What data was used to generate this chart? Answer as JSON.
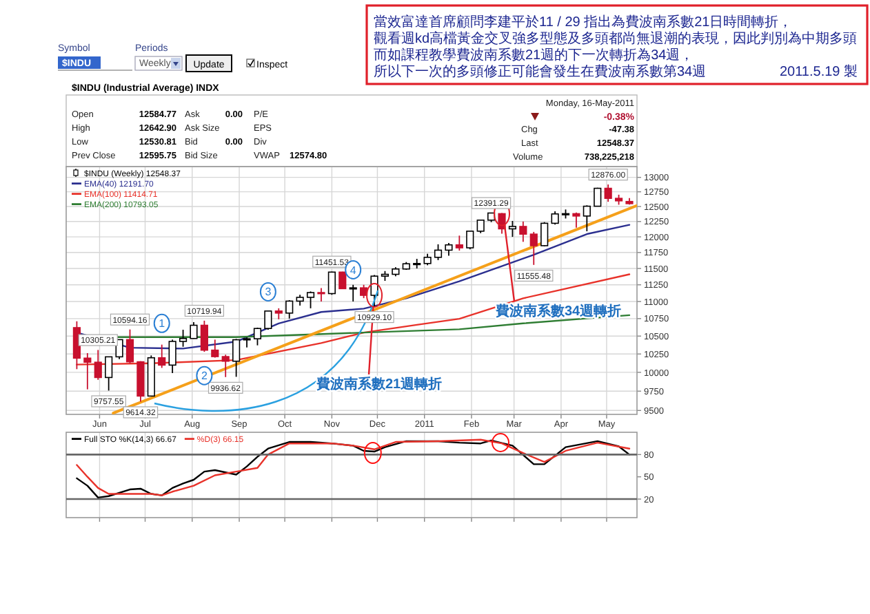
{
  "chart_data": [
    {
      "type": "other",
      "annotations": [
        "Symbol",
        "$INDU",
        "Periods",
        "Weekly",
        "Update",
        "Inspect",
        "Open",
        "12584.77",
        "High",
        "12642.90",
        "Low",
        "12530.81",
        "Prev Close",
        "12595.75",
        "Ask",
        "0.00",
        "Ask Size",
        "Bid",
        "0.00",
        "Bid Size",
        "P/E",
        "EPS",
        "Div",
        "VWAP",
        "12574.80",
        "Monday, 16-May-2011",
        "-0.38%",
        "Chg",
        "-47.38",
        "Last",
        "12548.37",
        "Volume",
        "738,225,218",
        "當效富達首席顧問李建平於11 / 29 指出為費波南系數21日時間轉折，",
        "觀看週kd高檔黃金交叉強多型態及多頭都尚無退潮的表現，因此判別為中期多頭",
        "而如課程教學費波南系數21週的下一次轉折為34週，",
        "所以下一次的多頭修正可能會發生在費波南系數第34週",
        "2011.5.19  製"
      ]
    },
    {
      "type": "candlestick",
      "title": "$INDU (Industrial Average) INDX",
      "log": "y",
      "grid": true,
      "legend": "top left",
      "xlim": [
        "2010-05-10",
        "2011-05-21"
      ],
      "ylim": [
        9450,
        13190
      ],
      "xticks": [
        {
          "value": "2010-06-01",
          "label": "Jun"
        },
        {
          "value": "2010-07-01",
          "label": "Jul"
        },
        {
          "value": "2010-08-01",
          "label": "Aug"
        },
        {
          "value": "2010-09-01",
          "label": "Sep"
        },
        {
          "value": "2010-10-01",
          "label": "Oct"
        },
        {
          "value": "2010-11-01",
          "label": "Nov"
        },
        {
          "value": "2010-12-01",
          "label": "Dec"
        },
        {
          "value": "2011-01-01",
          "label": "2011"
        },
        {
          "value": "2011-02-01",
          "label": "Feb"
        },
        {
          "value": "2011-03-01",
          "label": "Mar"
        },
        {
          "value": "2011-04-01",
          "label": "Apr"
        },
        {
          "value": "2011-05-01",
          "label": "May"
        }
      ],
      "yticks": [
        9500,
        9750,
        10000,
        10250,
        10500,
        10750,
        11000,
        11250,
        11500,
        11750,
        12000,
        12250,
        12500,
        12750,
        13000
      ],
      "series": [
        {
          "type": "candlestick",
          "name": "$INDU (Weekly) 12548.37",
          "colors": [
            "#c8102e",
            "#c8102e",
            "#c8102e",
            "#ffffff",
            "#ffffff",
            "#c8102e",
            "#c8102e",
            "#ffffff",
            "#c8102e",
            "#ffffff",
            "#ffffff",
            "#ffffff",
            "#c8102e",
            "#c8102e",
            "#c8102e",
            "#ffffff",
            "#ffffff",
            "#ffffff",
            "#ffffff",
            "#c8102e",
            "#ffffff",
            "#ffffff",
            "#ffffff",
            "#c8102e",
            "#ffffff",
            "#c8102e",
            "#ffffff",
            "#c8102e",
            "#ffffff",
            "#ffffff",
            "#ffffff",
            "#ffffff",
            "#ffffff",
            "#ffffff",
            "#ffffff",
            "#ffffff",
            "#c8102e",
            "#ffffff",
            "#ffffff",
            "#ffffff",
            "#c8102e",
            "#ffffff",
            "#c8102e",
            "#c8102e",
            "#ffffff",
            "#ffffff",
            "#ffffff",
            "#c8102e",
            "#ffffff",
            "#ffffff",
            "#c8102e",
            "#c8102e",
            "#c8102e"
          ],
          "x": [
            "2010-05-17",
            "2010-05-24",
            "2010-05-31",
            "2010-06-07",
            "2010-06-14",
            "2010-06-21",
            "2010-06-28",
            "2010-07-05",
            "2010-07-12",
            "2010-07-19",
            "2010-07-26",
            "2010-08-02",
            "2010-08-09",
            "2010-08-16",
            "2010-08-23",
            "2010-08-30",
            "2010-09-06",
            "2010-09-13",
            "2010-09-20",
            "2010-09-27",
            "2010-10-04",
            "2010-10-11",
            "2010-10-18",
            "2010-10-25",
            "2010-11-01",
            "2010-11-08",
            "2010-11-15",
            "2010-11-22",
            "2010-11-29",
            "2010-12-06",
            "2010-12-13",
            "2010-12-20",
            "2010-12-27",
            "2011-01-03",
            "2011-01-10",
            "2011-01-17",
            "2011-01-24",
            "2011-01-31",
            "2011-02-07",
            "2011-02-14",
            "2011-02-21",
            "2011-02-28",
            "2011-03-07",
            "2011-03-14",
            "2011-03-21",
            "2011-03-28",
            "2011-04-04",
            "2011-04-11",
            "2011-04-18",
            "2011-04-25",
            "2011-05-02",
            "2011-05-09",
            "2011-05-16"
          ],
          "ohlc": [
            [
              10620,
              10711,
              10043,
              10193
            ],
            [
              10193,
              10262,
              9774,
              10137
            ],
            [
              10137,
              10305.21,
              9900,
              9931
            ],
            [
              9931,
              10212,
              9757.55,
              10211
            ],
            [
              10211,
              10450,
              10180,
              10450
            ],
            [
              10450,
              10594.16,
              10120,
              10143
            ],
            [
              10143,
              10150,
              9614.32,
              9686
            ],
            [
              9686,
              10230,
              9686,
              10198
            ],
            [
              10198,
              10380,
              10060,
              10098
            ],
            [
              10098,
              10450,
              9990,
              10425
            ],
            [
              10425,
              10590,
              10350,
              10466
            ],
            [
              10466,
              10700,
              10460,
              10654
            ],
            [
              10654,
              10719.94,
              10280,
              10303
            ],
            [
              10303,
              10450,
              10200,
              10214
            ],
            [
              10214,
              10240,
              9936.62,
              10151
            ],
            [
              10151,
              10460,
              9940,
              10448
            ],
            [
              10448,
              10480,
              10340,
              10462
            ],
            [
              10462,
              10620,
              10370,
              10608
            ],
            [
              10608,
              10860,
              10590,
              10860
            ],
            [
              10860,
              10900,
              10740,
              10830
            ],
            [
              10830,
              11020,
              10750,
              11006
            ],
            [
              11006,
              11100,
              10940,
              11062
            ],
            [
              11062,
              11150,
              10900,
              11133
            ],
            [
              11133,
              11200,
              11000,
              11118
            ],
            [
              11118,
              11451.53,
              11100,
              11444
            ],
            [
              11444,
              11450,
              11190,
              11192
            ],
            [
              11192,
              11250,
              11000,
              11204
            ],
            [
              11204,
              11250,
              11050,
              11092
            ],
            [
              11092,
              11400,
              10929.1,
              11382
            ],
            [
              11382,
              11460,
              11310,
              11410
            ],
            [
              11410,
              11520,
              11380,
              11492
            ],
            [
              11492,
              11600,
              11480,
              11573
            ],
            [
              11573,
              11650,
              11500,
              11577
            ],
            [
              11577,
              11730,
              11550,
              11674
            ],
            [
              11674,
              11880,
              11630,
              11787
            ],
            [
              11787,
              11900,
              11700,
              11871
            ],
            [
              11871,
              12020,
              11780,
              11824
            ],
            [
              11824,
              12100,
              11800,
              12092
            ],
            [
              12092,
              12280,
              12060,
              12273
            ],
            [
              12273,
              12391.29,
              12240,
              12391
            ],
            [
              12380,
              12390,
              12050,
              12130
            ],
            [
              12130,
              12260,
              12000,
              12169
            ],
            [
              12169,
              12250,
              11920,
              12044
            ],
            [
              12044,
              12080,
              11555.48,
              11858
            ],
            [
              11858,
              12240,
              11850,
              12221
            ],
            [
              12221,
              12420,
              12200,
              12376
            ],
            [
              12376,
              12450,
              12300,
              12380
            ],
            [
              12380,
              12400,
              12150,
              12341
            ],
            [
              12341,
              12520,
              12090,
              12505
            ],
            [
              12505,
              12820,
              12500,
              12810
            ],
            [
              12810,
              12876,
              12580,
              12638
            ],
            [
              12638,
              12700,
              12530,
              12595.75
            ],
            [
              12584.77,
              12642.9,
              12530.81,
              12548.37
            ]
          ]
        },
        {
          "type": "line",
          "name": "EMA(40) 12191.70",
          "color": "#2b2f8f",
          "x": [
            "2010-05-17",
            "2010-06-21",
            "2010-07-26",
            "2010-08-30",
            "2010-09-27",
            "2010-10-25",
            "2010-11-22",
            "2010-12-20",
            "2011-01-24",
            "2011-02-21",
            "2011-03-14",
            "2011-04-18",
            "2011-05-16"
          ],
          "values": [
            10550,
            10337,
            10325,
            10422,
            10681,
            10846,
            10895,
            11048,
            11304,
            11537,
            11715,
            12045,
            12196
          ]
        },
        {
          "type": "line",
          "name": "EMA(100) 11414.71",
          "color": "#e8322a",
          "x": [
            "2010-05-17",
            "2010-07-05",
            "2010-08-30",
            "2010-10-25",
            "2010-11-22",
            "2010-12-27",
            "2011-01-24",
            "2011-03-07",
            "2011-05-16"
          ],
          "values": [
            10105,
            10123,
            10166,
            10402,
            10550,
            10661,
            10747,
            11048,
            11410
          ]
        },
        {
          "type": "line",
          "name": "EMA(200) 10793.05",
          "color": "#2e7d32",
          "x": [
            "2010-05-31",
            "2010-08-30",
            "2010-11-22",
            "2011-01-24",
            "2011-03-07",
            "2011-05-16"
          ],
          "values": [
            10485,
            10485,
            10550,
            10596,
            10681,
            10800
          ]
        },
        {
          "type": "line",
          "color": "#f5a01a",
          "x": [
            "2010-06-10",
            "2011-05-21"
          ],
          "values": [
            9466,
            12515
          ]
        }
      ],
      "annotations": [
        {
          "text": "10305.21",
          "x": "2010-05-31",
          "y": 10305.21
        },
        {
          "text": "9757.55",
          "x": "2010-06-07",
          "y": 9757.55
        },
        {
          "text": "10594.16",
          "x": "2010-06-21",
          "y": 10594.16
        },
        {
          "text": "9614.32",
          "x": "2010-06-28",
          "y": 9614.32
        },
        {
          "text": "10719.94",
          "x": "2010-08-09",
          "y": 10719.94
        },
        {
          "text": "9936.62",
          "x": "2010-08-23",
          "y": 9936.62
        },
        {
          "text": "11451.53",
          "x": "2010-11-01",
          "y": 11451.53
        },
        {
          "text": "10929.10",
          "x": "2010-11-29",
          "y": 10929.1
        },
        {
          "text": "12391.29",
          "x": "2011-02-14",
          "y": 12391.29
        },
        {
          "text": "11555.48",
          "x": "2011-03-14",
          "y": 11555.48
        },
        {
          "text": "12876.00",
          "x": "2011-05-02",
          "y": 12876
        },
        {
          "text": "1",
          "x": "2010-07-12",
          "y": 10681
        },
        {
          "text": "2",
          "x": "2010-08-09",
          "y": 9956
        },
        {
          "text": "3",
          "x": "2010-09-20",
          "y": 11145
        },
        {
          "text": "4",
          "x": "2010-11-15",
          "y": 11480
        },
        {
          "text": "費波南系數21週轉折",
          "x": "2010-11-29",
          "y": 11092
        },
        {
          "text": "費波南系數34週轉折",
          "x": "2011-02-21",
          "y": 12380
        }
      ]
    },
    {
      "type": "line",
      "grid": "x",
      "legend": "top left",
      "tick_labels": "y",
      "xlim": [
        "2010-05-10",
        "2011-05-21"
      ],
      "ylim": [
        -5,
        110
      ],
      "yticks": [
        20,
        50,
        80
      ],
      "xticks": [
        {
          "value": "2010-06-01",
          "label": null
        },
        {
          "value": "2010-07-01",
          "label": null
        },
        {
          "value": "2010-08-01",
          "label": null
        },
        {
          "value": "2010-09-01",
          "label": null
        },
        {
          "value": "2010-10-01",
          "label": null
        },
        {
          "value": "2010-11-01",
          "label": null
        },
        {
          "value": "2010-12-01",
          "label": null
        },
        {
          "value": "2011-01-01",
          "label": null
        },
        {
          "value": "2011-02-01",
          "label": null
        },
        {
          "value": "2011-03-01",
          "label": null
        },
        {
          "value": "2011-04-01",
          "label": null
        },
        {
          "value": "2011-05-01",
          "label": null
        }
      ],
      "ref_lines": [
        {
          "axis": "y",
          "value": 80,
          "color": "#666666"
        },
        {
          "axis": "y",
          "value": 20,
          "color": "#666666"
        }
      ],
      "series": [
        {
          "name": "Full STO %K(14,3) 66.67",
          "color": "#000000",
          "x": [
            "2010-05-17",
            "2010-05-24",
            "2010-05-31",
            "2010-06-07",
            "2010-06-21",
            "2010-06-28",
            "2010-07-05",
            "2010-07-12",
            "2010-07-19",
            "2010-07-26",
            "2010-08-02",
            "2010-08-09",
            "2010-08-16",
            "2010-08-30",
            "2010-09-06",
            "2010-09-13",
            "2010-09-20",
            "2010-10-04",
            "2010-10-18",
            "2010-11-01",
            "2010-11-15",
            "2010-11-22",
            "2010-11-29",
            "2010-12-06",
            "2010-12-20",
            "2011-01-10",
            "2011-01-24",
            "2011-02-07",
            "2011-02-14",
            "2011-02-28",
            "2011-03-14",
            "2011-03-21",
            "2011-04-04",
            "2011-04-25",
            "2011-05-09",
            "2011-05-16"
          ],
          "values": [
            48,
            38,
            22,
            24,
            33,
            34,
            27,
            25,
            35,
            41,
            46,
            57,
            59,
            53,
            64,
            77,
            88,
            97,
            97,
            95,
            92,
            85,
            84,
            90,
            98,
            98,
            96,
            95,
            99,
            92,
            67,
            67,
            90,
            98,
            91,
            80
          ]
        },
        {
          "name": "%D(3) 66.15",
          "color": "#e8322a",
          "x": [
            "2010-05-17",
            "2010-05-24",
            "2010-05-31",
            "2010-06-07",
            "2010-06-21",
            "2010-07-05",
            "2010-07-12",
            "2010-07-19",
            "2010-08-02",
            "2010-08-16",
            "2010-08-30",
            "2010-09-13",
            "2010-09-20",
            "2010-10-04",
            "2010-11-01",
            "2010-11-15",
            "2010-11-29",
            "2010-12-13",
            "2011-01-10",
            "2011-02-07",
            "2011-02-21",
            "2011-03-07",
            "2011-03-21",
            "2011-04-04",
            "2011-04-25",
            "2011-05-16"
          ],
          "values": [
            66,
            50,
            35,
            27,
            27,
            27,
            25,
            30,
            38,
            52,
            57,
            62,
            80,
            95,
            95,
            92,
            87,
            97,
            98,
            100,
            95,
            82,
            70,
            85,
            96,
            88
          ]
        }
      ]
    }
  ]
}
